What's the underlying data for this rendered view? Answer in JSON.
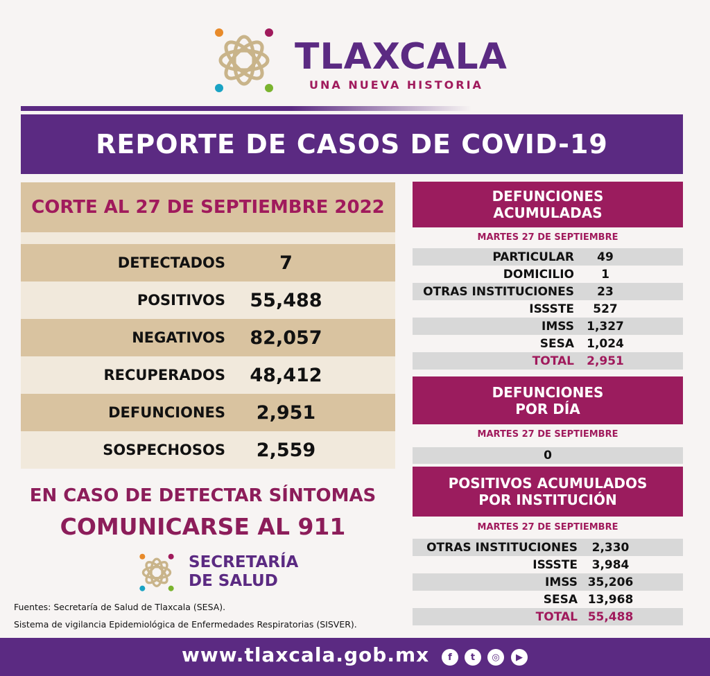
{
  "brand": {
    "name": "TLAXCALA",
    "tagline": "UNA NUEVA HISTORIA"
  },
  "title": "REPORTE DE CASOS DE COVID-19",
  "summary": {
    "header": "CORTE AL 27 DE SEPTIEMBRE 2022",
    "rows": [
      {
        "label": "DETECTADOS",
        "value": "7"
      },
      {
        "label": "POSITIVOS",
        "value": "55,488"
      },
      {
        "label": "NEGATIVOS",
        "value": "82,057"
      },
      {
        "label": "RECUPERADOS",
        "value": "48,412"
      },
      {
        "label": "DEFUNCIONES",
        "value": "2,951"
      },
      {
        "label": "SOSPECHOSOS",
        "value": "2,559"
      }
    ]
  },
  "defunciones_acumuladas": {
    "title_line1": "DEFUNCIONES",
    "title_line2": "ACUMULADAS",
    "date": "MARTES 27 DE SEPTIEMBRE",
    "rows": [
      {
        "label": "PARTICULAR",
        "value": "49"
      },
      {
        "label": "DOMICILIO",
        "value": "1"
      },
      {
        "label": "OTRAS INSTITUCIONES",
        "value": "23"
      },
      {
        "label": "ISSSTE",
        "value": "527"
      },
      {
        "label": "IMSS",
        "value": "1,327"
      },
      {
        "label": "SESA",
        "value": "1,024"
      },
      {
        "label": "TOTAL",
        "value": "2,951"
      }
    ]
  },
  "defunciones_dia": {
    "title_line1": "DEFUNCIONES",
    "title_line2": "POR DÍA",
    "date": "MARTES 27 DE SEPTIEMBRE",
    "value": "0"
  },
  "positivos_institucion": {
    "title_line1": "POSITIVOS ACUMULADOS",
    "title_line2": "POR INSTITUCIÓN",
    "date": "MARTES 27 DE SEPTIEMBRE",
    "rows": [
      {
        "label": "OTRAS INSTITUCIONES",
        "value": "2,330"
      },
      {
        "label": "ISSSTE",
        "value": "3,984"
      },
      {
        "label": "IMSS",
        "value": "35,206"
      },
      {
        "label": "SESA",
        "value": "13,968"
      },
      {
        "label": "TOTAL",
        "value": "55,488"
      }
    ]
  },
  "cta": {
    "line1": "EN CASO DE DETECTAR SÍNTOMAS",
    "line2": "COMUNICARSE AL 911"
  },
  "secretaria": {
    "line1": "SECRETARÍA",
    "line2": "DE SALUD"
  },
  "sources": {
    "line1": "Fuentes:  Secretaría de Salud de Tlaxcala (SESA).",
    "line2": "Sistema de vigilancia Epidemiológica de Enfermedades Respiratorias (SISVER)."
  },
  "footer": {
    "url": "www.tlaxcala.gob.mx",
    "social": [
      "facebook-icon",
      "twitter-icon",
      "instagram-icon",
      "youtube-icon"
    ]
  },
  "colors": {
    "purple": "#5b2a82",
    "magenta": "#9b1c5e",
    "tan": "#d9c3a0",
    "beige": "#f1e9dc",
    "gray": "#d8d8d8"
  }
}
